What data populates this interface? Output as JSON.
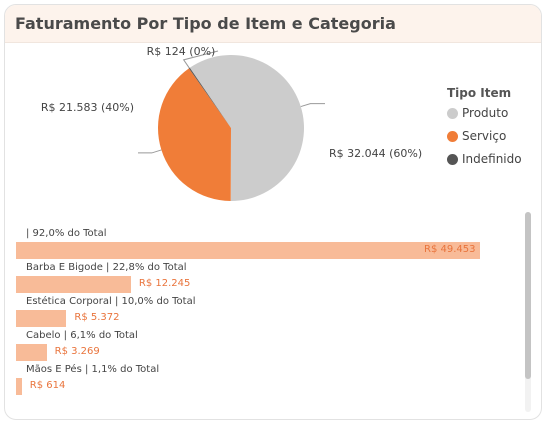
{
  "card": {
    "title": "Faturamento Por Tipo de Item e Categoria"
  },
  "chart_data": [
    {
      "type": "pie",
      "legend_title": "Tipo Item",
      "legend_position": "right",
      "slices": [
        {
          "name": "Produto",
          "value": 32044,
          "label": "R$ 32.044 (60%)",
          "color": "#cccccc"
        },
        {
          "name": "Serviço",
          "value": 21583,
          "label": "R$ 21.583 (40%)",
          "color": "#f07d38"
        },
        {
          "name": "Indefinido",
          "value": 124,
          "label": "R$ 124 (0%)",
          "color": "#555555"
        }
      ]
    },
    {
      "type": "bar",
      "orientation": "horizontal",
      "bar_color": "#f8bb98",
      "value_color": "#e9743c",
      "max": 49453,
      "rows": [
        {
          "label": "| 92,0% do Total",
          "value": 49453,
          "value_label": "R$ 49.453"
        },
        {
          "label": "Barba E Bigode | 22,8% do Total",
          "value": 12245,
          "value_label": "R$ 12.245"
        },
        {
          "label": "Estética Corporal | 10,0% do Total",
          "value": 5372,
          "value_label": "R$ 5.372"
        },
        {
          "label": "Cabelo | 6,1% do Total",
          "value": 3269,
          "value_label": "R$ 3.269"
        },
        {
          "label": "Mãos E Pés | 1,1% do Total",
          "value": 614,
          "value_label": "R$ 614"
        }
      ]
    }
  ]
}
